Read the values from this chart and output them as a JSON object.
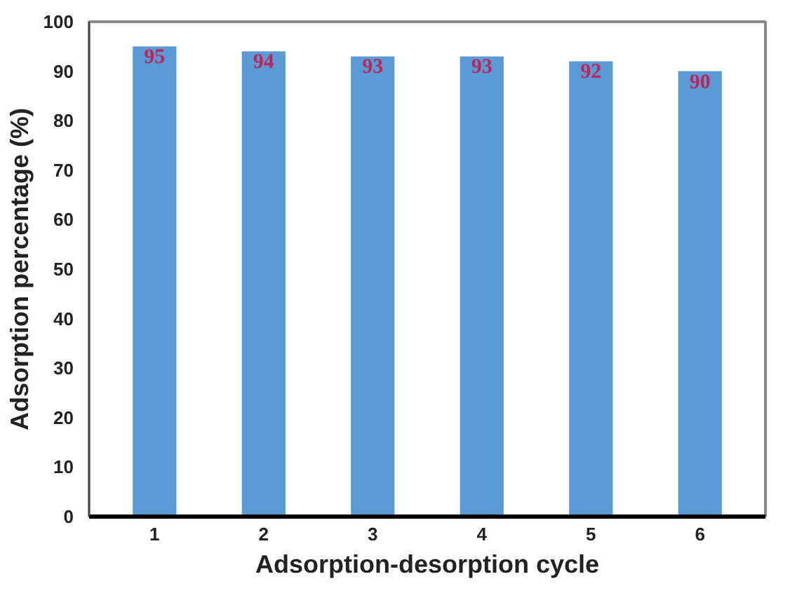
{
  "chart_data": {
    "type": "bar",
    "xlabel": "Adsorption-desorption cycle",
    "ylabel": "Adsorption percentage (%)",
    "categories": [
      "1",
      "2",
      "3",
      "4",
      "5",
      "6"
    ],
    "values": [
      95,
      94,
      93,
      93,
      92,
      90
    ],
    "color": "#5b9bd5",
    "ylim": [
      0,
      100
    ],
    "yticks": [
      0,
      10,
      20,
      30,
      40,
      50,
      60,
      70,
      80,
      90,
      100
    ],
    "data_labels": true,
    "grid": false
  }
}
